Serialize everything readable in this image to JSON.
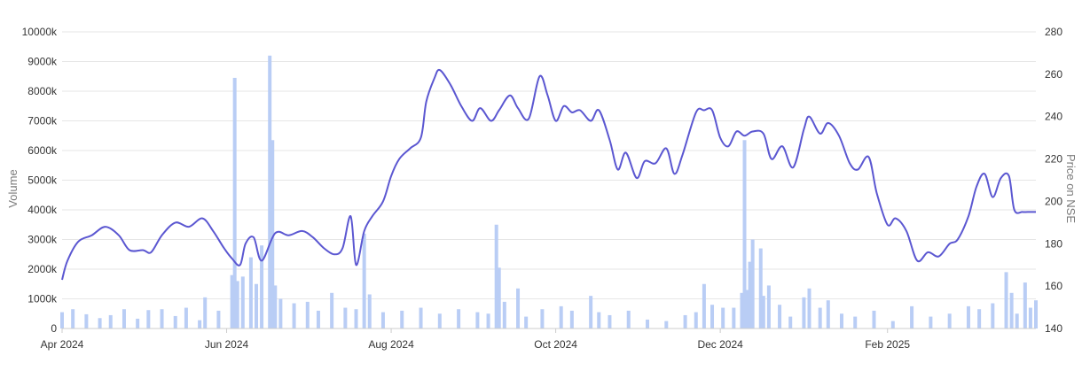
{
  "chart_data": {
    "type": "bar+line",
    "title": "",
    "y_left": {
      "label": "Volume",
      "ticks": [
        "0",
        "1000k",
        "2000k",
        "3000k",
        "4000k",
        "5000k",
        "6000k",
        "7000k",
        "8000k",
        "9000k",
        "10000k"
      ],
      "range": [
        0,
        10000
      ]
    },
    "y_right": {
      "label": "Price on NSE",
      "ticks": [
        "140",
        "160",
        "180",
        "200",
        "220",
        "240",
        "260",
        "280"
      ],
      "range": [
        140,
        280
      ]
    },
    "x_axis": {
      "range": [
        "2024-04-01",
        "2025-03-28"
      ],
      "ticks": [
        {
          "date": "2024-04-01",
          "label": "Apr 2024"
        },
        {
          "date": "2024-06-01",
          "label": "Jun 2024"
        },
        {
          "date": "2024-08-01",
          "label": "Aug 2024"
        },
        {
          "date": "2024-10-01",
          "label": "Oct 2024"
        },
        {
          "date": "2024-12-01",
          "label": "Dec 2024"
        },
        {
          "date": "2025-02-01",
          "label": "Feb 2025"
        }
      ]
    },
    "grid": true,
    "legend": "none",
    "colors": {
      "price_line": "#5b57d1",
      "volume_bar": "#b9cdf5"
    },
    "series": [
      {
        "type": "bar",
        "axis": "left",
        "unit": "thousand shares",
        "points": [
          {
            "x": "2024-04-01",
            "y": 550
          },
          {
            "x": "2024-04-05",
            "y": 650
          },
          {
            "x": "2024-04-10",
            "y": 480
          },
          {
            "x": "2024-04-15",
            "y": 350
          },
          {
            "x": "2024-04-19",
            "y": 450
          },
          {
            "x": "2024-04-24",
            "y": 650
          },
          {
            "x": "2024-04-29",
            "y": 330
          },
          {
            "x": "2024-05-03",
            "y": 620
          },
          {
            "x": "2024-05-08",
            "y": 650
          },
          {
            "x": "2024-05-13",
            "y": 420
          },
          {
            "x": "2024-05-17",
            "y": 700
          },
          {
            "x": "2024-05-22",
            "y": 280
          },
          {
            "x": "2024-05-24",
            "y": 1050
          },
          {
            "x": "2024-05-29",
            "y": 600
          },
          {
            "x": "2024-06-03",
            "y": 1800
          },
          {
            "x": "2024-06-04",
            "y": 8450
          },
          {
            "x": "2024-06-05",
            "y": 1600
          },
          {
            "x": "2024-06-07",
            "y": 1750
          },
          {
            "x": "2024-06-10",
            "y": 2400
          },
          {
            "x": "2024-06-12",
            "y": 1500
          },
          {
            "x": "2024-06-14",
            "y": 2800
          },
          {
            "x": "2024-06-17",
            "y": 9200
          },
          {
            "x": "2024-06-18",
            "y": 6350
          },
          {
            "x": "2024-06-19",
            "y": 1450
          },
          {
            "x": "2024-06-21",
            "y": 1000
          },
          {
            "x": "2024-06-26",
            "y": 850
          },
          {
            "x": "2024-07-01",
            "y": 900
          },
          {
            "x": "2024-07-05",
            "y": 600
          },
          {
            "x": "2024-07-10",
            "y": 1200
          },
          {
            "x": "2024-07-15",
            "y": 700
          },
          {
            "x": "2024-07-19",
            "y": 650
          },
          {
            "x": "2024-07-22",
            "y": 3200
          },
          {
            "x": "2024-07-24",
            "y": 1150
          },
          {
            "x": "2024-07-29",
            "y": 550
          },
          {
            "x": "2024-08-05",
            "y": 600
          },
          {
            "x": "2024-08-12",
            "y": 700
          },
          {
            "x": "2024-08-19",
            "y": 500
          },
          {
            "x": "2024-08-26",
            "y": 650
          },
          {
            "x": "2024-09-02",
            "y": 550
          },
          {
            "x": "2024-09-06",
            "y": 500
          },
          {
            "x": "2024-09-09",
            "y": 3500
          },
          {
            "x": "2024-09-10",
            "y": 2050
          },
          {
            "x": "2024-09-12",
            "y": 900
          },
          {
            "x": "2024-09-17",
            "y": 1350
          },
          {
            "x": "2024-09-20",
            "y": 400
          },
          {
            "x": "2024-09-26",
            "y": 650
          },
          {
            "x": "2024-10-03",
            "y": 750
          },
          {
            "x": "2024-10-07",
            "y": 600
          },
          {
            "x": "2024-10-14",
            "y": 1100
          },
          {
            "x": "2024-10-17",
            "y": 550
          },
          {
            "x": "2024-10-21",
            "y": 450
          },
          {
            "x": "2024-10-28",
            "y": 600
          },
          {
            "x": "2024-11-04",
            "y": 300
          },
          {
            "x": "2024-11-11",
            "y": 250
          },
          {
            "x": "2024-11-18",
            "y": 450
          },
          {
            "x": "2024-11-22",
            "y": 550
          },
          {
            "x": "2024-11-25",
            "y": 1500
          },
          {
            "x": "2024-11-28",
            "y": 800
          },
          {
            "x": "2024-12-02",
            "y": 700
          },
          {
            "x": "2024-12-06",
            "y": 700
          },
          {
            "x": "2024-12-09",
            "y": 1200
          },
          {
            "x": "2024-12-10",
            "y": 6350
          },
          {
            "x": "2024-12-11",
            "y": 1300
          },
          {
            "x": "2024-12-12",
            "y": 2250
          },
          {
            "x": "2024-12-13",
            "y": 3000
          },
          {
            "x": "2024-12-16",
            "y": 2700
          },
          {
            "x": "2024-12-17",
            "y": 1100
          },
          {
            "x": "2024-12-19",
            "y": 1450
          },
          {
            "x": "2024-12-23",
            "y": 800
          },
          {
            "x": "2024-12-27",
            "y": 400
          },
          {
            "x": "2025-01-01",
            "y": 1050
          },
          {
            "x": "2025-01-03",
            "y": 1350
          },
          {
            "x": "2025-01-07",
            "y": 700
          },
          {
            "x": "2025-01-10",
            "y": 950
          },
          {
            "x": "2025-01-15",
            "y": 500
          },
          {
            "x": "2025-01-20",
            "y": 400
          },
          {
            "x": "2025-01-27",
            "y": 600
          },
          {
            "x": "2025-02-03",
            "y": 250
          },
          {
            "x": "2025-02-10",
            "y": 750
          },
          {
            "x": "2025-02-17",
            "y": 400
          },
          {
            "x": "2025-02-24",
            "y": 500
          },
          {
            "x": "2025-03-03",
            "y": 750
          },
          {
            "x": "2025-03-07",
            "y": 650
          },
          {
            "x": "2025-03-12",
            "y": 850
          },
          {
            "x": "2025-03-17",
            "y": 1900
          },
          {
            "x": "2025-03-19",
            "y": 1200
          },
          {
            "x": "2025-03-21",
            "y": 500
          },
          {
            "x": "2025-03-24",
            "y": 1550
          },
          {
            "x": "2025-03-26",
            "y": 700
          },
          {
            "x": "2025-03-28",
            "y": 950
          }
        ]
      },
      {
        "type": "line",
        "axis": "right",
        "points": [
          {
            "x": "2024-04-01",
            "y": 163
          },
          {
            "x": "2024-04-03",
            "y": 172
          },
          {
            "x": "2024-04-07",
            "y": 181
          },
          {
            "x": "2024-04-12",
            "y": 184
          },
          {
            "x": "2024-04-17",
            "y": 188
          },
          {
            "x": "2024-04-22",
            "y": 184
          },
          {
            "x": "2024-04-26",
            "y": 177
          },
          {
            "x": "2024-05-01",
            "y": 177
          },
          {
            "x": "2024-05-04",
            "y": 176
          },
          {
            "x": "2024-05-08",
            "y": 184
          },
          {
            "x": "2024-05-13",
            "y": 190
          },
          {
            "x": "2024-05-18",
            "y": 188
          },
          {
            "x": "2024-05-23",
            "y": 192
          },
          {
            "x": "2024-05-27",
            "y": 186
          },
          {
            "x": "2024-05-31",
            "y": 178
          },
          {
            "x": "2024-06-03",
            "y": 173
          },
          {
            "x": "2024-06-06",
            "y": 170
          },
          {
            "x": "2024-06-08",
            "y": 180
          },
          {
            "x": "2024-06-11",
            "y": 183
          },
          {
            "x": "2024-06-14",
            "y": 172
          },
          {
            "x": "2024-06-19",
            "y": 185
          },
          {
            "x": "2024-06-24",
            "y": 184
          },
          {
            "x": "2024-06-29",
            "y": 186
          },
          {
            "x": "2024-07-03",
            "y": 183
          },
          {
            "x": "2024-07-07",
            "y": 178
          },
          {
            "x": "2024-07-11",
            "y": 175
          },
          {
            "x": "2024-07-14",
            "y": 178
          },
          {
            "x": "2024-07-17",
            "y": 193
          },
          {
            "x": "2024-07-19",
            "y": 170
          },
          {
            "x": "2024-07-22",
            "y": 186
          },
          {
            "x": "2024-07-25",
            "y": 193
          },
          {
            "x": "2024-07-29",
            "y": 200
          },
          {
            "x": "2024-08-01",
            "y": 212
          },
          {
            "x": "2024-08-04",
            "y": 220
          },
          {
            "x": "2024-08-08",
            "y": 225
          },
          {
            "x": "2024-08-12",
            "y": 230
          },
          {
            "x": "2024-08-14",
            "y": 247
          },
          {
            "x": "2024-08-17",
            "y": 258
          },
          {
            "x": "2024-08-19",
            "y": 262
          },
          {
            "x": "2024-08-23",
            "y": 255
          },
          {
            "x": "2024-08-27",
            "y": 245
          },
          {
            "x": "2024-08-31",
            "y": 238
          },
          {
            "x": "2024-09-03",
            "y": 244
          },
          {
            "x": "2024-09-07",
            "y": 238
          },
          {
            "x": "2024-09-10",
            "y": 243
          },
          {
            "x": "2024-09-14",
            "y": 250
          },
          {
            "x": "2024-09-17",
            "y": 244
          },
          {
            "x": "2024-09-21",
            "y": 239
          },
          {
            "x": "2024-09-25",
            "y": 259
          },
          {
            "x": "2024-09-28",
            "y": 250
          },
          {
            "x": "2024-10-01",
            "y": 238
          },
          {
            "x": "2024-10-04",
            "y": 245
          },
          {
            "x": "2024-10-07",
            "y": 242
          },
          {
            "x": "2024-10-10",
            "y": 243
          },
          {
            "x": "2024-10-14",
            "y": 238
          },
          {
            "x": "2024-10-17",
            "y": 243
          },
          {
            "x": "2024-10-21",
            "y": 229
          },
          {
            "x": "2024-10-24",
            "y": 215
          },
          {
            "x": "2024-10-27",
            "y": 223
          },
          {
            "x": "2024-10-31",
            "y": 211
          },
          {
            "x": "2024-11-03",
            "y": 219
          },
          {
            "x": "2024-11-07",
            "y": 218
          },
          {
            "x": "2024-11-11",
            "y": 225
          },
          {
            "x": "2024-11-14",
            "y": 213
          },
          {
            "x": "2024-11-17",
            "y": 222
          },
          {
            "x": "2024-11-22",
            "y": 242
          },
          {
            "x": "2024-11-25",
            "y": 243
          },
          {
            "x": "2024-11-28",
            "y": 243
          },
          {
            "x": "2024-12-01",
            "y": 230
          },
          {
            "x": "2024-12-04",
            "y": 226
          },
          {
            "x": "2024-12-07",
            "y": 233
          },
          {
            "x": "2024-12-10",
            "y": 231
          },
          {
            "x": "2024-12-13",
            "y": 233
          },
          {
            "x": "2024-12-17",
            "y": 232
          },
          {
            "x": "2024-12-20",
            "y": 220
          },
          {
            "x": "2024-12-24",
            "y": 226
          },
          {
            "x": "2024-12-28",
            "y": 216
          },
          {
            "x": "2025-01-01",
            "y": 234
          },
          {
            "x": "2025-01-03",
            "y": 240
          },
          {
            "x": "2025-01-07",
            "y": 232
          },
          {
            "x": "2025-01-10",
            "y": 237
          },
          {
            "x": "2025-01-14",
            "y": 231
          },
          {
            "x": "2025-01-18",
            "y": 218
          },
          {
            "x": "2025-01-21",
            "y": 215
          },
          {
            "x": "2025-01-25",
            "y": 221
          },
          {
            "x": "2025-01-28",
            "y": 204
          },
          {
            "x": "2025-02-01",
            "y": 189
          },
          {
            "x": "2025-02-04",
            "y": 192
          },
          {
            "x": "2025-02-08",
            "y": 186
          },
          {
            "x": "2025-02-12",
            "y": 172
          },
          {
            "x": "2025-02-16",
            "y": 176
          },
          {
            "x": "2025-02-20",
            "y": 174
          },
          {
            "x": "2025-02-24",
            "y": 180
          },
          {
            "x": "2025-02-27",
            "y": 182
          },
          {
            "x": "2025-03-03",
            "y": 193
          },
          {
            "x": "2025-03-06",
            "y": 207
          },
          {
            "x": "2025-03-09",
            "y": 213
          },
          {
            "x": "2025-03-12",
            "y": 202
          },
          {
            "x": "2025-03-15",
            "y": 211
          },
          {
            "x": "2025-03-18",
            "y": 212
          },
          {
            "x": "2025-03-20",
            "y": 196
          },
          {
            "x": "2025-03-23",
            "y": 195
          },
          {
            "x": "2025-03-25",
            "y": 195
          },
          {
            "x": "2025-03-28",
            "y": 195
          }
        ]
      }
    ]
  }
}
